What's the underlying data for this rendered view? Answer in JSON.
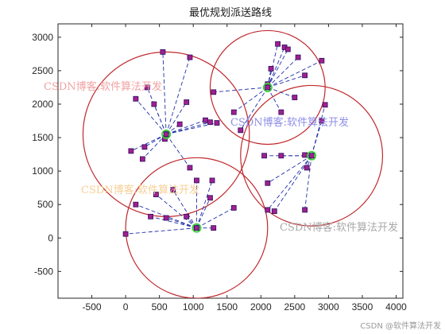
{
  "chart_data": {
    "type": "scatter",
    "title": "最优规划派送路线",
    "xlabel": "",
    "ylabel": "",
    "xlim": [
      -1000,
      4100
    ],
    "ylim": [
      -900,
      3200
    ],
    "xticks": [
      -500,
      0,
      500,
      1000,
      1500,
      2000,
      2500,
      3000,
      3500,
      4000
    ],
    "yticks": [
      -500,
      0,
      500,
      1000,
      1500,
      2000,
      2500,
      3000
    ],
    "grid": false,
    "colors": {
      "circle": "#c0282d",
      "line": "#1f2fa8",
      "point_fill": "#a0208f",
      "point_edge": "#2b1060",
      "center": "#3ed13e"
    },
    "clusters": [
      {
        "center": [
          600,
          1550
        ],
        "radius": 1230,
        "points": [
          [
            550,
            2780
          ],
          [
            950,
            2700
          ],
          [
            320,
            2250
          ],
          [
            150,
            2080
          ],
          [
            420,
            2000
          ],
          [
            900,
            2030
          ],
          [
            1250,
            1730
          ],
          [
            1350,
            1720
          ],
          [
            1180,
            1760
          ],
          [
            800,
            1700
          ],
          [
            280,
            1360
          ],
          [
            80,
            1300
          ],
          [
            250,
            1180
          ],
          [
            580,
            1480
          ],
          [
            950,
            1050
          ]
        ]
      },
      {
        "center": [
          2100,
          2250
        ],
        "radius": 850,
        "points": [
          [
            2250,
            2900
          ],
          [
            2350,
            2850
          ],
          [
            2400,
            2820
          ],
          [
            2550,
            2700
          ],
          [
            2900,
            2650
          ],
          [
            2150,
            2530
          ],
          [
            2650,
            2430
          ],
          [
            2100,
            2300
          ],
          [
            1300,
            2180
          ],
          [
            2500,
            2100
          ],
          [
            1600,
            1880
          ],
          [
            2300,
            1880
          ],
          [
            1700,
            1610
          ]
        ]
      },
      {
        "center": [
          2750,
          1230
        ],
        "radius": 1050,
        "points": [
          [
            2950,
            1990
          ],
          [
            2900,
            1750
          ],
          [
            2050,
            1230
          ],
          [
            2300,
            1230
          ],
          [
            2650,
            1240
          ],
          [
            2680,
            1050
          ],
          [
            2100,
            820
          ],
          [
            2100,
            420
          ],
          [
            2200,
            400
          ],
          [
            2650,
            420
          ]
        ]
      },
      {
        "center": [
          1050,
          150
        ],
        "radius": 1050,
        "points": [
          [
            700,
            720
          ],
          [
            1280,
            860
          ],
          [
            1250,
            600
          ],
          [
            1050,
            860
          ],
          [
            150,
            500
          ],
          [
            450,
            650
          ],
          [
            370,
            320
          ],
          [
            600,
            300
          ],
          [
            900,
            320
          ],
          [
            1600,
            450
          ],
          [
            1300,
            150
          ],
          [
            0,
            60
          ]
        ]
      }
    ]
  },
  "watermarks": {
    "w1": "CSDN博客:软件算法开发",
    "w2": "CSDN博客:软件算法开发",
    "w3": "CSDN博客:软件算法开发",
    "w4": "CSDN博客:软件算法开发",
    "corner": "CSDN @软件算法开发"
  }
}
